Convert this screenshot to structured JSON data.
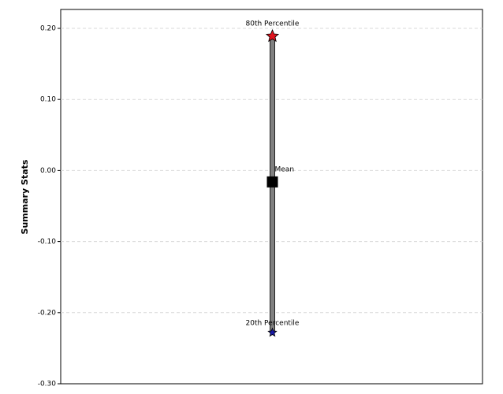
{
  "chart_data": {
    "type": "highlow",
    "y_label": "Summary Stats",
    "series": [
      {
        "name": "80th Percentile",
        "color": "#e0141e",
        "marker": "star",
        "values": [
          0.189
        ]
      },
      {
        "name": "Mean",
        "color": "#000000",
        "marker": "square",
        "values": [
          -0.016
        ]
      },
      {
        "name": "20th Percentile",
        "color": "#1a1aa8",
        "marker": "star",
        "values": [
          -0.228
        ]
      }
    ],
    "range_color": "#808080",
    "ylim": [
      -0.3,
      0.2266
    ],
    "yticks": [
      {
        "value": -0.3,
        "label": "-0.30"
      },
      {
        "value": -0.2,
        "label": "-0.20"
      },
      {
        "value": -0.1,
        "label": "-0.10"
      },
      {
        "value": 0,
        "label": "0.00"
      },
      {
        "value": 0.1,
        "label": "0.10"
      },
      {
        "value": 0.2,
        "label": "0.20"
      }
    ],
    "grid": true
  }
}
